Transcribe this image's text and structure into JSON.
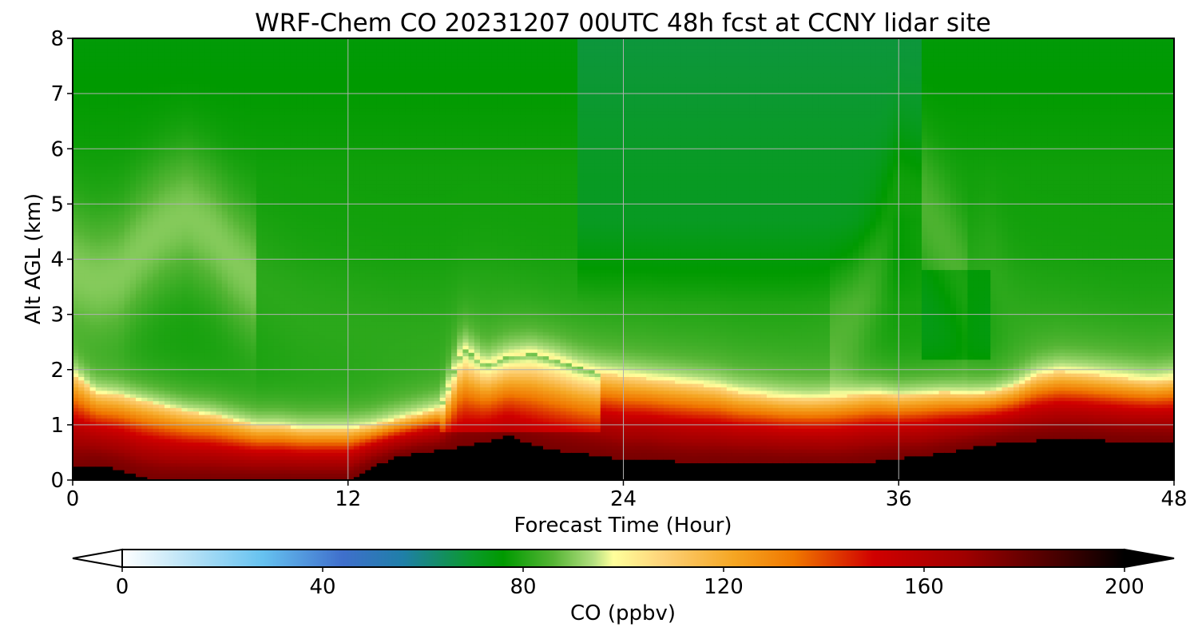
{
  "chart_data": {
    "type": "heatmap",
    "title": "WRF-Chem CO  20231207 00UTC 48h fcst at CCNY lidar site",
    "xlabel": "Forecast Time (Hour)",
    "ylabel": "Alt AGL (km)",
    "xlim": [
      0,
      48
    ],
    "ylim": [
      0,
      8
    ],
    "xticks": [
      0,
      12,
      24,
      36,
      48
    ],
    "yticks": [
      0,
      1,
      2,
      3,
      4,
      5,
      6,
      7,
      8
    ],
    "grid": true,
    "colorbar": {
      "label": "CO  (ppbv)",
      "range": [
        0,
        200
      ],
      "ticks": [
        0,
        40,
        80,
        120,
        160,
        200
      ],
      "extend": "both",
      "orientation": "horizontal",
      "colors": [
        {
          "v": 0,
          "c": "#ffffff"
        },
        {
          "v": 12,
          "c": "#bfe5f7"
        },
        {
          "v": 28,
          "c": "#66c2f0"
        },
        {
          "v": 44,
          "c": "#3f6fcc"
        },
        {
          "v": 56,
          "c": "#1f7fa8"
        },
        {
          "v": 70,
          "c": "#0a9a2a"
        },
        {
          "v": 76,
          "c": "#009a00"
        },
        {
          "v": 86,
          "c": "#55b535"
        },
        {
          "v": 94,
          "c": "#b3df80"
        },
        {
          "v": 98,
          "c": "#ffff9c"
        },
        {
          "v": 108,
          "c": "#fdd278"
        },
        {
          "v": 122,
          "c": "#f5a623"
        },
        {
          "v": 134,
          "c": "#f07800"
        },
        {
          "v": 150,
          "c": "#d00000"
        },
        {
          "v": 168,
          "c": "#a00000"
        },
        {
          "v": 188,
          "c": "#400000"
        },
        {
          "v": 200,
          "c": "#000000"
        }
      ]
    },
    "x": [
      0,
      1,
      2,
      3,
      4,
      5,
      6,
      7,
      8,
      9,
      10,
      11,
      12,
      13,
      14,
      15,
      16,
      17,
      18,
      19,
      20,
      21,
      22,
      23,
      24,
      25,
      26,
      27,
      28,
      29,
      30,
      31,
      32,
      33,
      34,
      35,
      36,
      37,
      38,
      39,
      40,
      41,
      42,
      43,
      44,
      45,
      46,
      47,
      48
    ],
    "ground_km": [
      0.22,
      0.28,
      0.2,
      0.05,
      0.0,
      0.0,
      0.0,
      0.0,
      0.0,
      0.0,
      0.0,
      0.0,
      0.0,
      0.25,
      0.4,
      0.5,
      0.55,
      0.62,
      0.7,
      0.82,
      0.65,
      0.55,
      0.5,
      0.45,
      0.38,
      0.4,
      0.35,
      0.32,
      0.33,
      0.32,
      0.32,
      0.3,
      0.3,
      0.28,
      0.3,
      0.35,
      0.4,
      0.42,
      0.5,
      0.58,
      0.65,
      0.7,
      0.72,
      0.75,
      0.75,
      0.72,
      0.7,
      0.7,
      0.68
    ],
    "pbl_top_km": [
      1.95,
      1.6,
      1.55,
      1.45,
      1.35,
      1.25,
      1.2,
      1.1,
      1.0,
      1.0,
      0.95,
      0.95,
      0.95,
      1.0,
      1.1,
      1.2,
      1.3,
      2.4,
      2.1,
      2.25,
      2.3,
      2.2,
      2.05,
      1.95,
      1.9,
      1.85,
      1.8,
      1.75,
      1.7,
      1.6,
      1.55,
      1.5,
      1.48,
      1.5,
      1.55,
      1.6,
      1.55,
      1.58,
      1.6,
      1.58,
      1.6,
      1.7,
      1.9,
      1.98,
      1.95,
      1.9,
      1.85,
      1.8,
      1.85
    ],
    "upper_peak_km": [
      3.8,
      3.6,
      3.7,
      4.2,
      4.6,
      4.8,
      4.5,
      4.0,
      3.6,
      3.3,
      3.0,
      2.9,
      2.8,
      2.7,
      2.6,
      2.6,
      2.6,
      2.8,
      2.9,
      2.8,
      2.6,
      2.5,
      2.5,
      2.4,
      2.4,
      2.4,
      2.3,
      2.3,
      2.3,
      2.2,
      2.2,
      2.2,
      2.3,
      2.5,
      3.0,
      4.0,
      5.3,
      5.0,
      4.3,
      3.4,
      3.9,
      3.0,
      2.7,
      2.6,
      2.5,
      2.4,
      2.3,
      2.3,
      2.3
    ]
  }
}
